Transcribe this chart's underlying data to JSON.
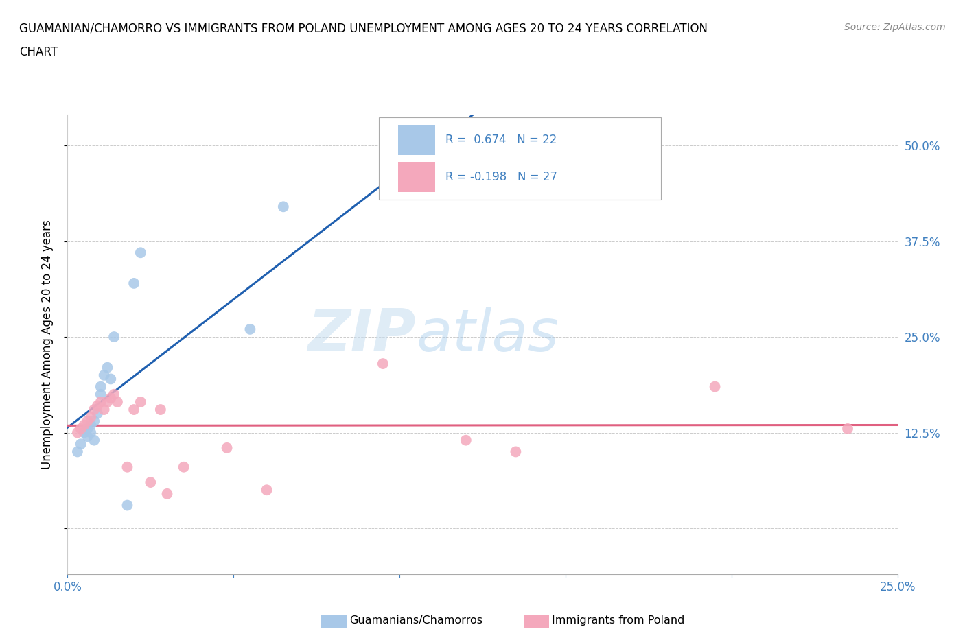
{
  "title_line1": "GUAMANIAN/CHAMORRO VS IMMIGRANTS FROM POLAND UNEMPLOYMENT AMONG AGES 20 TO 24 YEARS CORRELATION",
  "title_line2": "CHART",
  "source": "Source: ZipAtlas.com",
  "ylabel": "Unemployment Among Ages 20 to 24 years",
  "xlim": [
    0.0,
    0.25
  ],
  "ylim": [
    -0.06,
    0.54
  ],
  "xticks": [
    0.0,
    0.05,
    0.1,
    0.15,
    0.2,
    0.25
  ],
  "xticklabels": [
    "0.0%",
    "",
    "",
    "",
    "",
    "25.0%"
  ],
  "yticks": [
    0.0,
    0.125,
    0.25,
    0.375,
    0.5
  ],
  "yticklabels_right": [
    "",
    "12.5%",
    "25.0%",
    "37.5%",
    "50.0%"
  ],
  "guamanian_R": 0.674,
  "guamanian_N": 22,
  "poland_R": -0.198,
  "poland_N": 27,
  "guamanian_color": "#a8c8e8",
  "poland_color": "#f4a8bc",
  "guamanian_line_color": "#2060b0",
  "poland_line_color": "#e06080",
  "tick_color": "#4080c0",
  "background_color": "#ffffff",
  "watermark_zip": "ZIP",
  "watermark_atlas": "atlas",
  "guamanian_x": [
    0.003,
    0.004,
    0.005,
    0.006,
    0.006,
    0.007,
    0.007,
    0.008,
    0.008,
    0.009,
    0.01,
    0.01,
    0.011,
    0.012,
    0.013,
    0.014,
    0.018,
    0.02,
    0.022,
    0.055,
    0.065,
    0.12
  ],
  "guamanian_y": [
    0.1,
    0.11,
    0.125,
    0.13,
    0.12,
    0.135,
    0.125,
    0.115,
    0.14,
    0.15,
    0.175,
    0.185,
    0.2,
    0.21,
    0.195,
    0.25,
    0.03,
    0.32,
    0.36,
    0.26,
    0.42,
    0.49
  ],
  "poland_x": [
    0.003,
    0.004,
    0.005,
    0.006,
    0.007,
    0.008,
    0.009,
    0.01,
    0.011,
    0.012,
    0.013,
    0.014,
    0.015,
    0.018,
    0.02,
    0.022,
    0.025,
    0.028,
    0.03,
    0.035,
    0.048,
    0.06,
    0.095,
    0.12,
    0.135,
    0.195,
    0.235
  ],
  "poland_y": [
    0.125,
    0.13,
    0.135,
    0.14,
    0.145,
    0.155,
    0.16,
    0.165,
    0.155,
    0.165,
    0.17,
    0.175,
    0.165,
    0.08,
    0.155,
    0.165,
    0.06,
    0.155,
    0.045,
    0.08,
    0.105,
    0.05,
    0.215,
    0.115,
    0.1,
    0.185,
    0.13
  ]
}
